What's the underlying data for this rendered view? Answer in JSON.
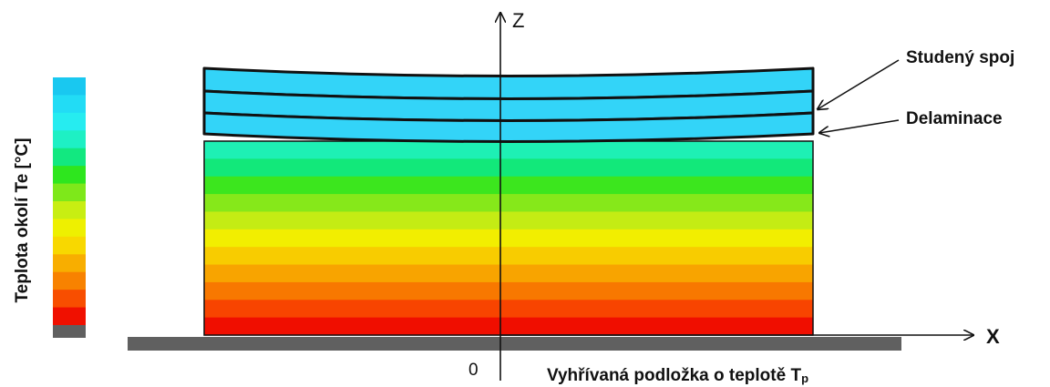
{
  "colorbar": {
    "label": "Teplota okolí Te [°C]",
    "colors": [
      "#19c8f0",
      "#22dcf5",
      "#26ecf0",
      "#1ef0c4",
      "#12e880",
      "#2ee61e",
      "#7ee81a",
      "#c8ee12",
      "#eef000",
      "#f8d800",
      "#f8ae00",
      "#f88200",
      "#f84e00",
      "#f01000"
    ],
    "base_color": "#606060"
  },
  "block": {
    "colors": [
      "#1ef0b4",
      "#12e87a",
      "#3ce61e",
      "#86e81a",
      "#c4ec14",
      "#f2ee00",
      "#f8cc00",
      "#f8a400",
      "#f87800",
      "#f84400",
      "#f00e00"
    ]
  },
  "layers": {
    "color": "#33d4f8",
    "count": 3
  },
  "substrate_color": "#606060",
  "axes": {
    "z_label": "Z",
    "x_label": "X",
    "origin_label": "0"
  },
  "annotations": {
    "cold_joint": "Studený spoj",
    "delamination": "Delaminace",
    "substrate_main": "Vyhřívaná podložka o teplotě T",
    "substrate_sub": "p"
  }
}
